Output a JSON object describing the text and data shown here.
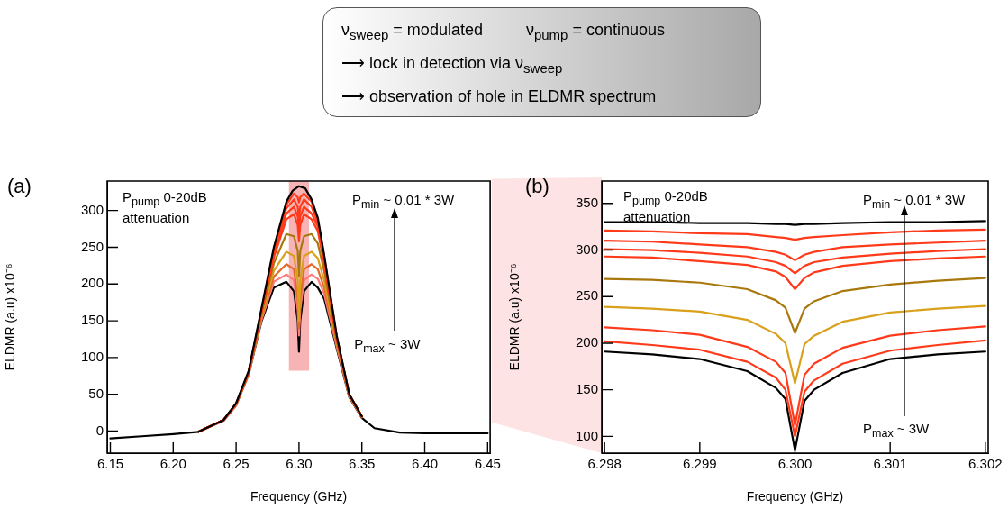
{
  "chart_data": [
    {
      "type": "other",
      "annotations": [
        "ν$_{sweep}$ = modulated",
        "ν$_{pump}$ = continuous",
        "⟶ lock in detection via ν$_{sweep}$",
        "⟶ observation of hole in ELDMR spectrum"
      ]
    },
    {
      "type": "line",
      "title": "(a)",
      "xlabel": "Frequency (GHz)",
      "ylabel": "ELDMR (a.u) x10⁻⁶",
      "xlim": [
        6.1475,
        6.452
      ],
      "ylim": [
        -30,
        340
      ],
      "xticks": [
        6.15,
        {
          "value": 6.2,
          "label": "6.20"
        },
        6.25,
        {
          "value": 6.3,
          "label": "6.30"
        },
        6.35,
        {
          "value": 6.4,
          "label": "6.40"
        },
        6.45
      ],
      "yticks": [
        0,
        50,
        100,
        150,
        200,
        250,
        300
      ],
      "bands": [
        {
          "axis": "x",
          "from": 6.292,
          "to": 6.308,
          "color": "#f8b4b4"
        }
      ],
      "annotations": [
        "P$_{pump}$ 0-20dB attenuation",
        "P$_{min}$ ~ 0.01 * 3W",
        "P$_{max}$ ~ 3W"
      ],
      "series": [
        {
          "color": "#000000",
          "x": [
            6.22,
            6.24,
            6.25,
            6.26,
            6.27,
            6.28,
            6.29,
            6.295,
            6.3,
            6.305,
            6.31,
            6.315,
            6.32,
            6.33,
            6.34,
            6.35
          ],
          "values": [
            -1,
            15,
            38,
            82,
            165,
            250,
            312,
            327,
            333,
            330,
            315,
            290,
            240,
            130,
            50,
            20
          ]
        },
        {
          "color": "#ff3a1a",
          "x": [
            6.22,
            6.24,
            6.25,
            6.26,
            6.27,
            6.28,
            6.29,
            6.296,
            6.299,
            6.3,
            6.301,
            6.304,
            6.31,
            6.315,
            6.32,
            6.33,
            6.34,
            6.35
          ],
          "values": [
            -1,
            15,
            37,
            80,
            163,
            248,
            308,
            323,
            318,
            311,
            318,
            323,
            312,
            287,
            238,
            128,
            50,
            20
          ]
        },
        {
          "color": "#ff3a1a",
          "x": [
            6.22,
            6.24,
            6.25,
            6.26,
            6.27,
            6.28,
            6.29,
            6.296,
            6.299,
            6.3,
            6.301,
            6.304,
            6.31,
            6.315,
            6.32,
            6.33,
            6.34,
            6.35
          ],
          "values": [
            -1,
            15,
            37,
            80,
            162,
            245,
            303,
            315,
            305,
            289,
            305,
            315,
            305,
            283,
            235,
            127,
            50,
            20
          ]
        },
        {
          "color": "#ff3a1a",
          "x": [
            6.22,
            6.24,
            6.25,
            6.26,
            6.27,
            6.28,
            6.29,
            6.296,
            6.299,
            6.3,
            6.301,
            6.304,
            6.31,
            6.315,
            6.32,
            6.33,
            6.34,
            6.35
          ],
          "values": [
            -1,
            15,
            37,
            80,
            161,
            240,
            296,
            305,
            292,
            275,
            292,
            305,
            296,
            278,
            232,
            126,
            50,
            20
          ]
        },
        {
          "color": "#ff3a1a",
          "x": [
            6.22,
            6.24,
            6.25,
            6.26,
            6.27,
            6.28,
            6.29,
            6.296,
            6.299,
            6.3,
            6.301,
            6.304,
            6.31,
            6.315,
            6.32,
            6.33,
            6.34,
            6.35
          ],
          "values": [
            -1,
            15,
            37,
            79,
            160,
            236,
            288,
            295,
            280,
            258,
            280,
            295,
            288,
            272,
            228,
            125,
            49,
            20
          ]
        },
        {
          "color": "#a8780c",
          "x": [
            6.22,
            6.24,
            6.25,
            6.26,
            6.27,
            6.28,
            6.29,
            6.296,
            6.299,
            6.3,
            6.301,
            6.304,
            6.31,
            6.315,
            6.32,
            6.33,
            6.34,
            6.35
          ],
          "values": [
            -1,
            15,
            36,
            79,
            158,
            228,
            268,
            265,
            245,
            211,
            245,
            265,
            268,
            255,
            218,
            123,
            49,
            20
          ]
        },
        {
          "color": "#d9a01a",
          "x": [
            6.25,
            6.26,
            6.27,
            6.28,
            6.29,
            6.296,
            6.299,
            6.3,
            6.301,
            6.304,
            6.31,
            6.315,
            6.32,
            6.33,
            6.34,
            6.35
          ],
          "values": [
            36,
            78,
            155,
            218,
            244,
            238,
            205,
            150,
            205,
            238,
            244,
            235,
            205,
            120,
            48,
            19
          ]
        },
        {
          "color": "#e46a2c",
          "x": [
            6.22,
            6.24,
            6.25,
            6.26,
            6.27,
            6.28,
            6.29,
            6.296,
            6.299,
            6.3,
            6.301,
            6.304,
            6.31,
            6.315,
            6.32,
            6.33,
            6.34,
            6.35
          ],
          "values": [
            -1,
            15,
            36,
            78,
            152,
            210,
            227,
            220,
            180,
            140,
            180,
            220,
            227,
            220,
            195,
            118,
            48,
            19
          ]
        },
        {
          "color": "#ff7a7a",
          "x": [
            6.22,
            6.24,
            6.25,
            6.26,
            6.27,
            6.28,
            6.29,
            6.296,
            6.299,
            6.3,
            6.301,
            6.304,
            6.31,
            6.315,
            6.32,
            6.33,
            6.34,
            6.35
          ],
          "values": [
            -1,
            14,
            35,
            77,
            150,
            203,
            213,
            205,
            165,
            130,
            165,
            205,
            213,
            207,
            187,
            115,
            47,
            19
          ]
        },
        {
          "color": "#000000",
          "x": [
            6.15,
            6.175,
            6.2,
            6.22,
            6.24,
            6.25,
            6.26,
            6.27,
            6.28,
            6.29,
            6.296,
            6.299,
            6.3,
            6.301,
            6.304,
            6.31,
            6.315,
            6.32,
            6.33,
            6.34,
            6.35,
            6.36,
            6.38,
            6.4,
            6.42,
            6.45
          ],
          "values": [
            -10,
            -7,
            -4,
            -1,
            14,
            35,
            77,
            148,
            195,
            203,
            190,
            150,
            108,
            150,
            190,
            203,
            195,
            180,
            112,
            46,
            18,
            4,
            -2,
            -3,
            -3,
            -3
          ]
        }
      ]
    },
    {
      "type": "line",
      "title": "(b)",
      "xlabel": "Frequency (GHz)",
      "ylabel": "ELDMR (a.u) x10⁻⁶",
      "xlim": [
        6.29797,
        6.30203
      ],
      "ylim": [
        82,
        374
      ],
      "xticks": [
        6.298,
        6.299,
        {
          "value": 6.3,
          "label": "6.300"
        },
        6.301,
        6.302
      ],
      "yticks": [
        100,
        150,
        200,
        250,
        300,
        350
      ],
      "annotations": [
        "P$_{pump}$ 0-20dB attenuation",
        "P$_{min}$ ~ 0.01 * 3W",
        "P$_{max}$ ~ 3W"
      ],
      "x": [
        6.298,
        6.2985,
        6.299,
        6.2995,
        6.2998,
        6.2999,
        6.3,
        6.3001,
        6.3002,
        6.3005,
        6.301,
        6.3015,
        6.302
      ],
      "series": [
        {
          "color": "#000000",
          "values": [
            330,
            330,
            329,
            329,
            328,
            328,
            327,
            328,
            328,
            329,
            330,
            330,
            331
          ]
        },
        {
          "color": "#ff3a1a",
          "values": [
            321,
            320,
            318,
            317,
            314,
            313,
            311,
            313,
            314,
            316,
            319,
            321,
            322
          ]
        },
        {
          "color": "#ff3a1a",
          "values": [
            310,
            309,
            306,
            303,
            298,
            295,
            289,
            295,
            298,
            303,
            306,
            308,
            310
          ]
        },
        {
          "color": "#ff3a1a",
          "values": [
            301,
            300,
            297,
            293,
            287,
            283,
            275,
            283,
            287,
            292,
            296,
            299,
            301
          ]
        },
        {
          "color": "#ff3a1a",
          "values": [
            293,
            292,
            288,
            284,
            277,
            271,
            258,
            270,
            276,
            283,
            288,
            291,
            293
          ]
        },
        {
          "color": "#a8780c",
          "values": [
            269,
            268,
            265,
            258,
            246,
            238,
            211,
            237,
            245,
            256,
            263,
            267,
            270
          ]
        },
        {
          "color": "#d9a01a",
          "values": [
            239,
            237,
            234,
            225,
            210,
            200,
            157,
            199,
            208,
            223,
            233,
            237,
            240
          ]
        },
        {
          "color": "#ff3a1a",
          "values": [
            217,
            214,
            209,
            196,
            180,
            168,
            112,
            166,
            178,
            195,
            208,
            214,
            218
          ]
        },
        {
          "color": "#ff3a1a",
          "values": [
            202,
            198,
            193,
            180,
            163,
            150,
            100,
            148,
            160,
            178,
            192,
            198,
            203
          ]
        },
        {
          "color": "#000000",
          "values": [
            191,
            188,
            183,
            170,
            152,
            140,
            85,
            138,
            150,
            168,
            183,
            188,
            191
          ]
        }
      ]
    }
  ]
}
